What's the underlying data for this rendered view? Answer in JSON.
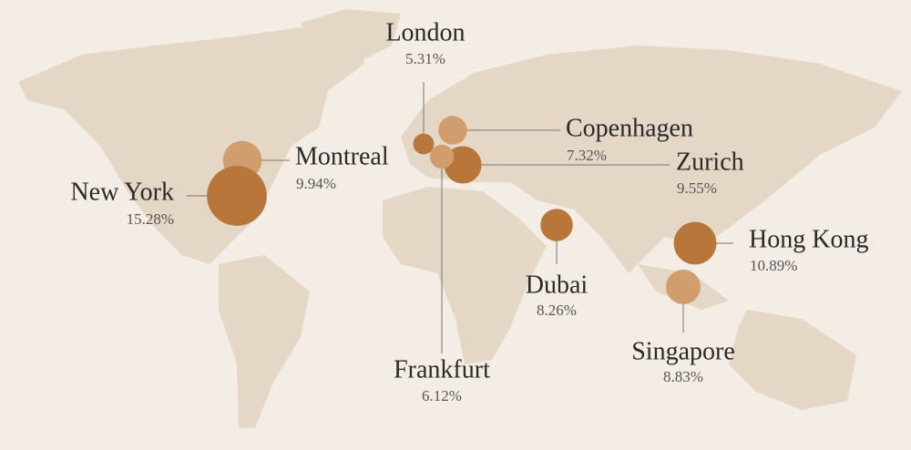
{
  "map": {
    "cities": [
      {
        "name": "London",
        "value": 5.31,
        "value_label": "5.31%",
        "color": "#b8763a"
      },
      {
        "name": "Copenhagen",
        "value": 7.32,
        "value_label": "7.32%",
        "color": "#d09e6d"
      },
      {
        "name": "Zurich",
        "value": 9.55,
        "value_label": "9.55%",
        "color": "#b8763a"
      },
      {
        "name": "Frankfurt",
        "value": 6.12,
        "value_label": "6.12%",
        "color": "#d09e6d"
      },
      {
        "name": "Montreal",
        "value": 9.94,
        "value_label": "9.94%",
        "color": "#d09e6d"
      },
      {
        "name": "New York",
        "value": 15.28,
        "value_label": "15.28%",
        "color": "#b8763a"
      },
      {
        "name": "Dubai",
        "value": 8.26,
        "value_label": "8.26%",
        "color": "#b8763a"
      },
      {
        "name": "Hong Kong",
        "value": 10.89,
        "value_label": "10.89%",
        "color": "#b8763a"
      },
      {
        "name": "Singapore",
        "value": 8.83,
        "value_label": "8.83%",
        "color": "#d09e6d"
      }
    ]
  }
}
